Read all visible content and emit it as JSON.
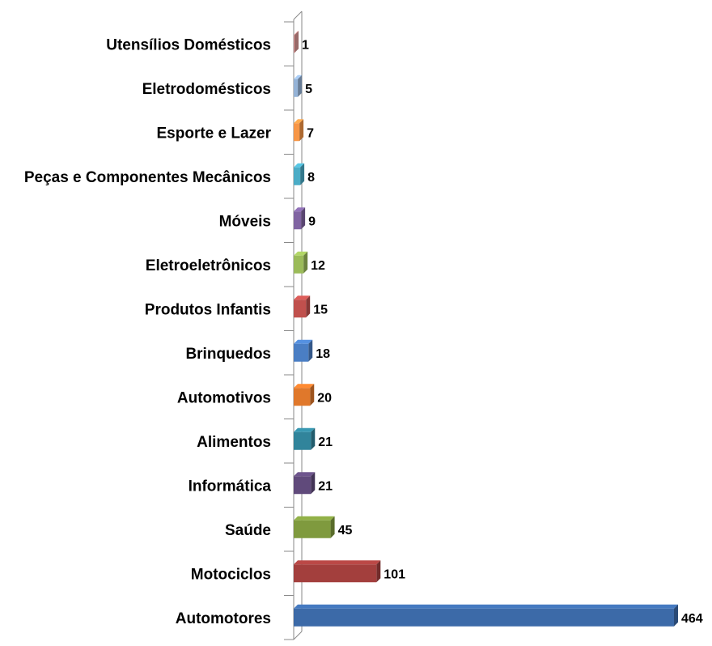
{
  "chart_data": {
    "type": "bar",
    "orientation": "horizontal",
    "categories": [
      "Utensílios Domésticos",
      "Eletrodomésticos",
      "Esporte e Lazer",
      "Peças e Componentes Mecânicos",
      "Móveis",
      "Eletroeletrônicos",
      "Produtos Infantis",
      "Brinquedos",
      "Automotivos",
      "Alimentos",
      "Informática",
      "Saúde",
      "Motociclos",
      "Automotores"
    ],
    "values": [
      1,
      5,
      7,
      8,
      9,
      12,
      15,
      18,
      20,
      21,
      21,
      45,
      101,
      464
    ],
    "colors": [
      "#d99694",
      "#95b3d7",
      "#f79646",
      "#4bacc6",
      "#8064a2",
      "#9bbb59",
      "#c0504d",
      "#4a7ec4",
      "#e0782b",
      "#31849b",
      "#604a7b",
      "#7f9a3e",
      "#a33f3d",
      "#3c6aa8"
    ]
  }
}
